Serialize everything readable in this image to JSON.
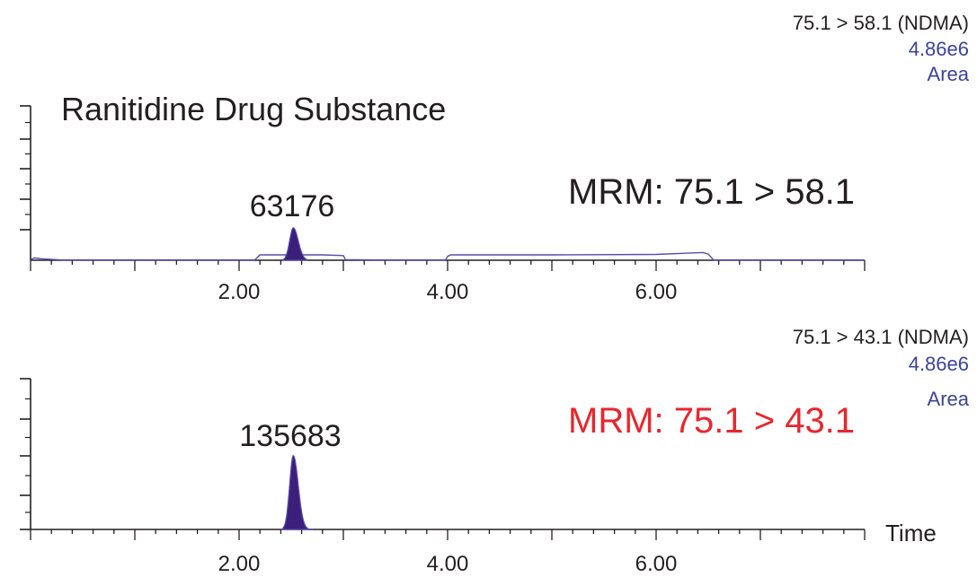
{
  "colors": {
    "axis": "#231f20",
    "trace": "#5b4ba8",
    "peak_fill": "#3b1f7a",
    "label_blue": "#3c4396",
    "mrm_red": "#e8262d",
    "text": "#231f20"
  },
  "x_axis_label": "Time",
  "chart_data": [
    {
      "type": "line",
      "id": "top",
      "title": "Ranitidine Drug Substance",
      "channel": "75.1 > 58.1 (NDMA)",
      "max_intensity": "4.86e6",
      "quant": "Area",
      "mrm_label": "MRM: 75.1 > 58.1",
      "xlim": [
        0,
        8
      ],
      "x_ticks": [
        {
          "value": 2,
          "label": "2.00"
        },
        {
          "value": 4,
          "label": "4.00"
        },
        {
          "value": 6,
          "label": "6.00"
        }
      ],
      "ylim": [
        0,
        1
      ],
      "peak": {
        "rt": 2.52,
        "height": 0.21,
        "width": 0.035,
        "start": 2.42,
        "end": 2.65,
        "area_label": "63176"
      },
      "baseline_segments": [
        {
          "x": [
            0.0,
            0.04,
            0.1,
            0.2,
            0.3,
            0.6,
            1.0,
            1.5,
            2.0,
            2.15
          ],
          "y": [
            0.005,
            0.015,
            0.01,
            0.005,
            0.002,
            0.002,
            0.002,
            0.002,
            0.002,
            0.002
          ]
        },
        {
          "x": [
            2.15,
            2.2,
            2.4,
            2.8,
            3.0,
            3.02,
            3.3,
            3.98
          ],
          "y": [
            0.002,
            0.035,
            0.035,
            0.035,
            0.03,
            0.004,
            0.002,
            0.002
          ]
        },
        {
          "x": [
            3.98,
            4.0,
            4.03,
            5.0,
            6.0,
            6.45,
            6.5,
            6.55,
            7.0,
            8.0
          ],
          "y": [
            0.002,
            0.025,
            0.035,
            0.035,
            0.038,
            0.05,
            0.04,
            0.002,
            0.002,
            0.002
          ]
        }
      ]
    },
    {
      "type": "line",
      "id": "bottom",
      "title": "",
      "channel": "75.1 > 43.1 (NDMA)",
      "max_intensity": "4.86e6",
      "quant": "Area",
      "mrm_label": "MRM: 75.1 > 43.1",
      "xlim": [
        0,
        8
      ],
      "x_ticks": [
        {
          "value": 2,
          "label": "2.00"
        },
        {
          "value": 4,
          "label": "4.00"
        },
        {
          "value": 6,
          "label": "6.00"
        }
      ],
      "ylim": [
        0,
        1
      ],
      "peak": {
        "rt": 2.52,
        "height": 0.49,
        "width": 0.035,
        "start": 2.42,
        "end": 2.7,
        "area_label": "135683"
      },
      "baseline_segments": [
        {
          "x": [
            2.4,
            2.7
          ],
          "y": [
            0.002,
            0.002
          ]
        }
      ]
    }
  ]
}
